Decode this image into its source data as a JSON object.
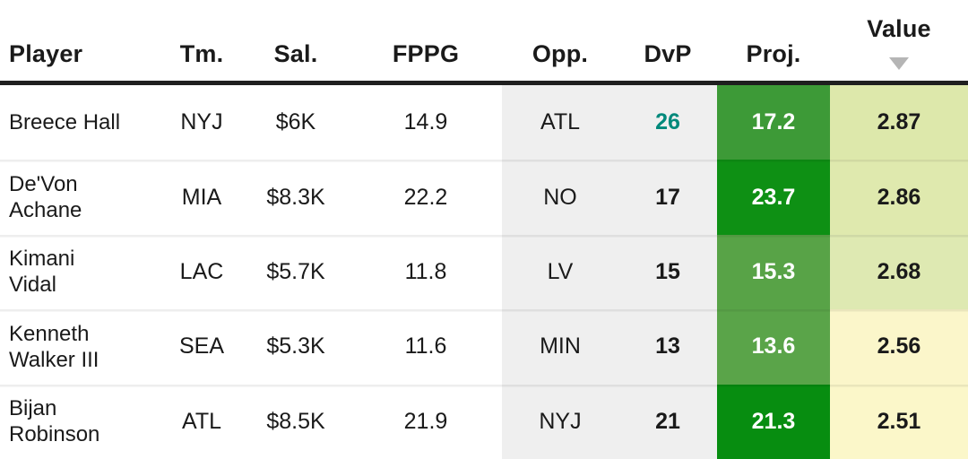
{
  "header": {
    "columns": [
      {
        "label": "Player"
      },
      {
        "label": "Tm."
      },
      {
        "label": "Sal."
      },
      {
        "label": "FPPG"
      },
      {
        "label": "Opp."
      },
      {
        "label": "DvP"
      },
      {
        "label": "Proj."
      },
      {
        "label": "Value"
      }
    ],
    "sort": {
      "column": "Value",
      "direction": "desc",
      "icon": "triangle-down-icon",
      "color": "#b5b5b5"
    }
  },
  "colors": {
    "header_text": "#1a1a1a",
    "body_text": "#1a1a1a",
    "matchup_column_bg": "#efefef",
    "header_rule": "#1f1f1f",
    "proj_text": "#ffffff",
    "dvp_highlight": "#00897b"
  },
  "rows": [
    {
      "player": "Breece Hall",
      "team": "NYJ",
      "salary": "$6K",
      "fppg": "14.9",
      "opp": "ATL",
      "dvp": "26",
      "proj": "17.2",
      "value": "2.87",
      "dvp_color": "#00897b",
      "proj_bg": "#3d9a37",
      "value_bg": "#dde8ab"
    },
    {
      "player": "De'Von Achane",
      "team": "MIA",
      "salary": "$8.3K",
      "fppg": "22.2",
      "opp": "NO",
      "dvp": "17",
      "proj": "23.7",
      "value": "2.86",
      "dvp_color": "#1a1a1a",
      "proj_bg": "#0e9014",
      "value_bg": "#dfe9ae"
    },
    {
      "player": "Kimani Vidal",
      "team": "LAC",
      "salary": "$5.7K",
      "fppg": "11.8",
      "opp": "LV",
      "dvp": "15",
      "proj": "15.3",
      "value": "2.68",
      "dvp_color": "#1a1a1a",
      "proj_bg": "#58a347",
      "value_bg": "#dee9b2"
    },
    {
      "player": "Kenneth Walker III",
      "team": "SEA",
      "salary": "$5.3K",
      "fppg": "11.6",
      "opp": "MIN",
      "dvp": "13",
      "proj": "13.6",
      "value": "2.56",
      "dvp_color": "#1a1a1a",
      "proj_bg": "#5aa449",
      "value_bg": "#fbf6ca"
    },
    {
      "player": "Bijan Robinson",
      "team": "ATL",
      "salary": "$8.5K",
      "fppg": "21.9",
      "opp": "NYJ",
      "dvp": "21",
      "proj": "21.3",
      "value": "2.51",
      "dvp_color": "#1a1a1a",
      "proj_bg": "#078d10",
      "value_bg": "#fbf7c9"
    }
  ]
}
